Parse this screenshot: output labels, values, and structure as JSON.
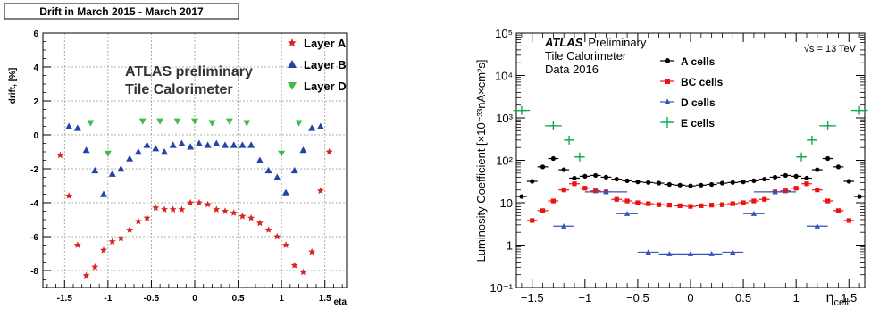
{
  "chart_data": [
    {
      "type": "scatter",
      "title": "Drift in March 2015 - March 2017",
      "xlabel": "eta",
      "ylabel": "drift, [%]",
      "xlim": [
        -1.75,
        1.75
      ],
      "ylim": [
        -9,
        6
      ],
      "grid": true,
      "legend_position": "top-right",
      "annotation": [
        "ATLAS preliminary",
        "Tile Calorimeter"
      ],
      "x_ticks": [
        "-1.5",
        "-1",
        "-0.5",
        "0",
        "0.5",
        "1",
        "1.5"
      ],
      "y_ticks": [
        "-8",
        "-6",
        "-4",
        "-2",
        "0",
        "2",
        "4",
        "6"
      ],
      "series": [
        {
          "name": "Layer A",
          "marker": "star",
          "color": "#dd2222",
          "x": [
            -1.55,
            -1.45,
            -1.35,
            -1.25,
            -1.15,
            -1.05,
            -0.95,
            -0.85,
            -0.75,
            -0.65,
            -0.55,
            -0.45,
            -0.35,
            -0.25,
            -0.15,
            -0.05,
            0.05,
            0.15,
            0.25,
            0.35,
            0.45,
            0.55,
            0.65,
            0.75,
            0.85,
            0.95,
            1.05,
            1.15,
            1.25,
            1.35,
            1.45,
            1.55
          ],
          "y": [
            -1.2,
            -3.6,
            -6.5,
            -8.3,
            -7.8,
            -6.8,
            -6.3,
            -6.1,
            -5.6,
            -5.1,
            -4.9,
            -4.3,
            -4.4,
            -4.4,
            -4.4,
            -4.0,
            -4.0,
            -4.1,
            -4.4,
            -4.5,
            -4.6,
            -4.8,
            -4.9,
            -5.2,
            -5.6,
            -6.0,
            -6.5,
            -7.7,
            -8.1,
            -6.9,
            -3.3,
            -1.0
          ]
        },
        {
          "name": "Layer B",
          "marker": "triangle-up",
          "color": "#2244aa",
          "x": [
            -1.45,
            -1.35,
            -1.25,
            -1.15,
            -1.05,
            -0.95,
            -0.85,
            -0.75,
            -0.65,
            -0.55,
            -0.45,
            -0.35,
            -0.25,
            -0.15,
            -0.05,
            0.05,
            0.15,
            0.25,
            0.35,
            0.45,
            0.55,
            0.65,
            0.75,
            0.85,
            0.95,
            1.05,
            1.15,
            1.25,
            1.35,
            1.45
          ],
          "y": [
            0.5,
            0.4,
            -0.9,
            -2.1,
            -3.5,
            -2.3,
            -2.0,
            -1.4,
            -1.0,
            -0.6,
            -0.8,
            -1.0,
            -0.6,
            -0.5,
            -0.7,
            -0.5,
            -0.6,
            -0.5,
            -0.6,
            -0.6,
            -0.6,
            -0.6,
            -1.5,
            -2.1,
            -2.5,
            -3.4,
            -2.1,
            -0.9,
            0.4,
            0.5
          ]
        },
        {
          "name": "Layer D",
          "marker": "triangle-down",
          "color": "#44bb44",
          "x": [
            -1.2,
            -1.0,
            -0.6,
            -0.4,
            -0.2,
            0.0,
            0.2,
            0.4,
            0.6,
            1.0,
            1.2
          ],
          "y": [
            0.7,
            -1.1,
            0.8,
            0.8,
            0.8,
            0.8,
            0.7,
            0.8,
            0.7,
            -1.1,
            0.7
          ]
        }
      ]
    },
    {
      "type": "scatter",
      "title": "",
      "xlabel": "η",
      "xlabel_sub": "cell",
      "ylabel": "Luminosity Coefficient [×10⁻³³nA×cm²s]",
      "xlim": [
        -1.65,
        1.65
      ],
      "ylim": [
        0.1,
        100000
      ],
      "y_scale": "log",
      "grid": false,
      "legend_position": "top-center",
      "annotation": {
        "atlas": "ATLAS",
        "status": "Preliminary",
        "line2": "Tile Calorimeter",
        "line3": "Data 2016",
        "energy": "√s = 13 TeV"
      },
      "x_ticks": [
        "−1.5",
        "−1",
        "−0.5",
        "0",
        "0.5",
        "1",
        "1.5"
      ],
      "y_ticks": [
        "10⁻¹",
        "1",
        "10",
        "10²",
        "10³",
        "10⁴",
        "10⁵"
      ],
      "series": [
        {
          "name": "A cells",
          "marker": "circle",
          "color": "#000000",
          "x": [
            -1.6,
            -1.5,
            -1.4,
            -1.3,
            -1.2,
            -1.1,
            -1.0,
            -0.9,
            -0.8,
            -0.7,
            -0.6,
            -0.5,
            -0.4,
            -0.3,
            -0.2,
            -0.1,
            0.0,
            0.1,
            0.2,
            0.3,
            0.4,
            0.5,
            0.6,
            0.7,
            0.8,
            0.9,
            1.0,
            1.1,
            1.2,
            1.3,
            1.4,
            1.5,
            1.6
          ],
          "y": [
            14,
            32,
            70,
            110,
            60,
            38,
            42,
            44,
            40,
            36,
            33,
            31,
            30,
            29,
            27,
            26,
            25,
            26,
            27,
            29,
            30,
            31,
            33,
            36,
            40,
            44,
            42,
            38,
            60,
            110,
            70,
            32,
            14
          ],
          "xerr": 0.05
        },
        {
          "name": "BC cells",
          "marker": "square",
          "color": "#ee1111",
          "x": [
            -1.5,
            -1.4,
            -1.3,
            -1.2,
            -1.1,
            -1.0,
            -0.9,
            -0.8,
            -0.7,
            -0.6,
            -0.5,
            -0.4,
            -0.3,
            -0.2,
            -0.1,
            0.0,
            0.1,
            0.2,
            0.3,
            0.4,
            0.5,
            0.6,
            0.7,
            0.8,
            0.9,
            1.0,
            1.1,
            1.2,
            1.3,
            1.4,
            1.5
          ],
          "y": [
            3.8,
            6.5,
            11,
            20,
            28,
            22,
            19,
            18,
            12,
            11,
            10,
            9.5,
            9,
            8.8,
            8.5,
            8.2,
            8.5,
            8.8,
            9,
            9.5,
            10,
            11,
            12,
            18,
            19,
            22,
            28,
            20,
            11,
            6.5,
            3.8
          ],
          "xerr": 0.05
        },
        {
          "name": "D cells",
          "marker": "triangle-up",
          "color": "#3355bb",
          "x": [
            -1.2,
            -0.8,
            -0.6,
            -0.4,
            -0.2,
            0.0,
            0.2,
            0.4,
            0.6,
            0.8,
            1.2
          ],
          "y": [
            2.8,
            18,
            5.5,
            0.68,
            0.62,
            0.62,
            0.62,
            0.68,
            5.5,
            18,
            2.8
          ],
          "xerr": [
            0.1,
            0.2,
            0.1,
            0.1,
            0.1,
            0.1,
            0.1,
            0.1,
            0.1,
            0.2,
            0.1
          ]
        },
        {
          "name": "E cells",
          "marker": "cross",
          "color": "#11aa55",
          "x": [
            -1.6,
            -1.3,
            -1.15,
            -1.05,
            1.05,
            1.15,
            1.3,
            1.6
          ],
          "y": [
            1500,
            650,
            300,
            120,
            120,
            300,
            650,
            1500
          ],
          "xerr": [
            0.08,
            0.08,
            0.05,
            0.05,
            0.05,
            0.05,
            0.08,
            0.08
          ]
        }
      ]
    }
  ]
}
